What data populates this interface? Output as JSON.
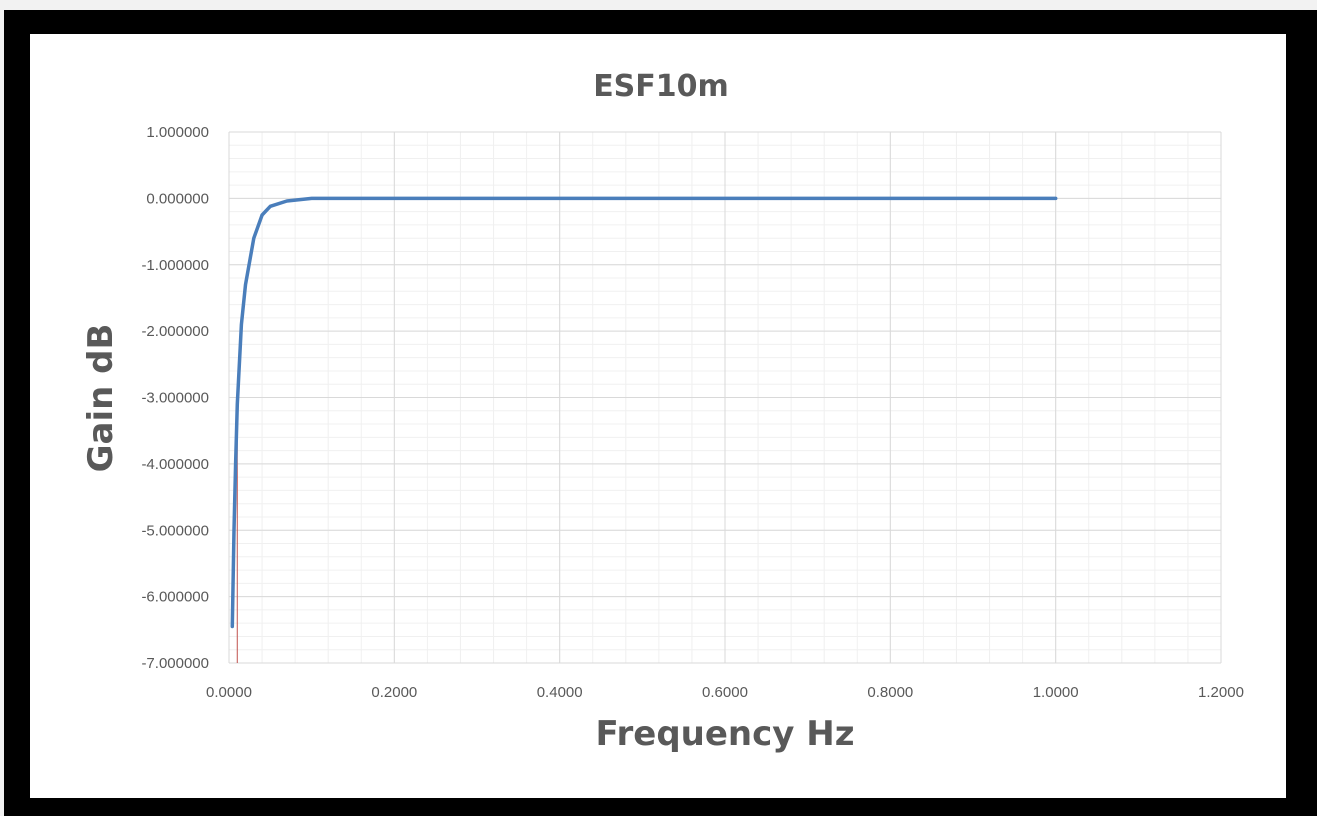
{
  "chart_data": {
    "type": "line",
    "title": "ESF10m",
    "xlabel": "Frequency Hz",
    "ylabel": "Gain dB",
    "xlim": [
      0,
      1.2
    ],
    "ylim": [
      -7,
      1
    ],
    "x_ticks": [
      "0.0000",
      "0.2000",
      "0.4000",
      "0.6000",
      "0.8000",
      "1.0000",
      "1.2000"
    ],
    "y_ticks": [
      "1.000000",
      "0.000000",
      "-1.000000",
      "-2.000000",
      "-3.000000",
      "-4.000000",
      "-5.000000",
      "-6.000000",
      "-7.000000"
    ],
    "grid": true,
    "legend": false,
    "line_color": "#4a7ebb",
    "marker_line": {
      "x": 0.01,
      "color": "#c0504d"
    },
    "series": [
      {
        "x": [
          0.004,
          0.006,
          0.008,
          0.01,
          0.015,
          0.02,
          0.03,
          0.04,
          0.05,
          0.07,
          0.1,
          0.2,
          0.4,
          0.6,
          0.8,
          1.0
        ],
        "y": [
          -6.45,
          -5.0,
          -4.0,
          -3.1,
          -1.9,
          -1.3,
          -0.6,
          -0.25,
          -0.12,
          -0.04,
          0.0,
          0.0,
          0.0,
          0.0,
          0.0,
          0.0
        ]
      }
    ]
  }
}
